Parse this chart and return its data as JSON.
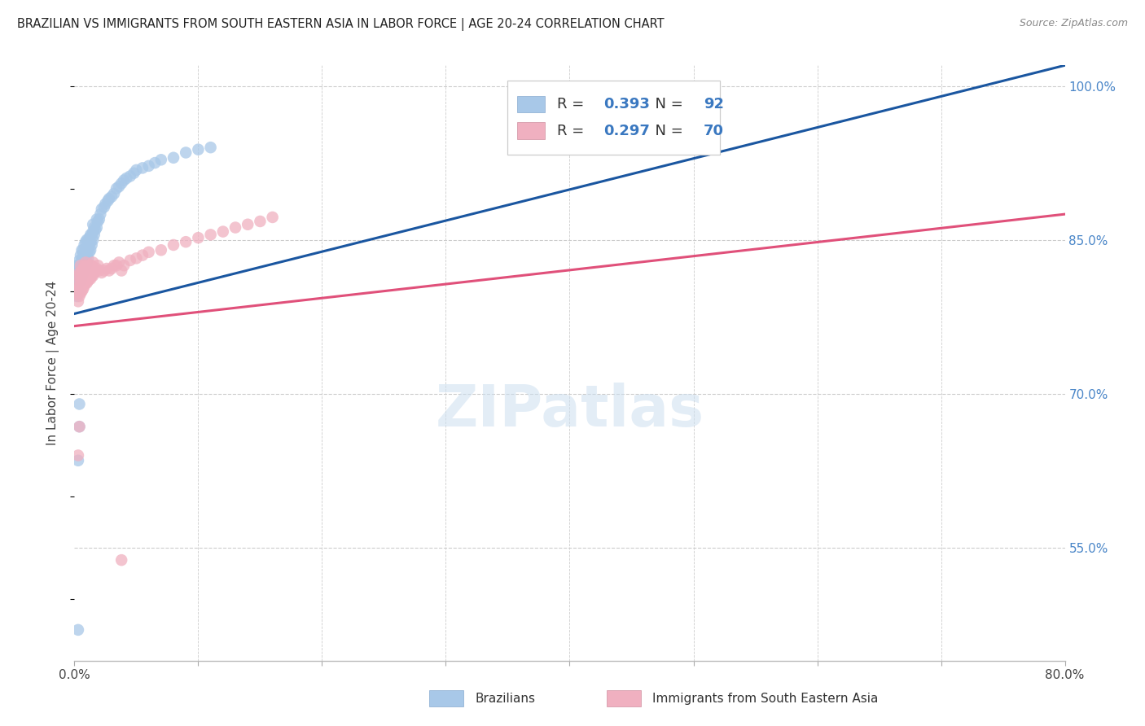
{
  "title": "BRAZILIAN VS IMMIGRANTS FROM SOUTH EASTERN ASIA IN LABOR FORCE | AGE 20-24 CORRELATION CHART",
  "source": "Source: ZipAtlas.com",
  "ylabel": "In Labor Force | Age 20-24",
  "x_min": 0.0,
  "x_max": 0.8,
  "y_min": 0.44,
  "y_max": 1.02,
  "x_ticks": [
    0.0,
    0.1,
    0.2,
    0.3,
    0.4,
    0.5,
    0.6,
    0.7,
    0.8
  ],
  "x_tick_labels": [
    "0.0%",
    "",
    "",
    "",
    "",
    "",
    "",
    "",
    "80.0%"
  ],
  "y_ticks": [
    0.55,
    0.7,
    0.85,
    1.0
  ],
  "y_tick_labels": [
    "55.0%",
    "70.0%",
    "85.0%",
    "100.0%"
  ],
  "blue_color": "#a8c8e8",
  "pink_color": "#f0b0c0",
  "blue_line_color": "#1a56a0",
  "pink_line_color": "#e0507a",
  "legend_label_blue": "Brazilians",
  "legend_label_pink": "Immigrants from South Eastern Asia",
  "R_blue": 0.393,
  "N_blue": 92,
  "R_pink": 0.297,
  "N_pink": 70,
  "blue_trend_x0": 0.0,
  "blue_trend_y0": 0.778,
  "blue_trend_x1": 0.8,
  "blue_trend_y1": 1.02,
  "pink_trend_x0": 0.0,
  "pink_trend_y0": 0.766,
  "pink_trend_x1": 0.8,
  "pink_trend_y1": 0.875,
  "watermark": "ZIPatlas",
  "background_color": "#ffffff",
  "grid_color": "#cccccc",
  "blue_scatter_x": [
    0.001,
    0.001,
    0.001,
    0.002,
    0.002,
    0.002,
    0.002,
    0.003,
    0.003,
    0.003,
    0.003,
    0.003,
    0.004,
    0.004,
    0.004,
    0.004,
    0.005,
    0.005,
    0.005,
    0.005,
    0.005,
    0.006,
    0.006,
    0.006,
    0.006,
    0.006,
    0.007,
    0.007,
    0.007,
    0.007,
    0.007,
    0.008,
    0.008,
    0.008,
    0.008,
    0.009,
    0.009,
    0.009,
    0.009,
    0.01,
    0.01,
    0.01,
    0.01,
    0.011,
    0.011,
    0.011,
    0.012,
    0.012,
    0.012,
    0.013,
    0.013,
    0.013,
    0.014,
    0.014,
    0.015,
    0.015,
    0.015,
    0.016,
    0.016,
    0.017,
    0.018,
    0.018,
    0.019,
    0.02,
    0.021,
    0.022,
    0.024,
    0.025,
    0.027,
    0.028,
    0.03,
    0.032,
    0.034,
    0.036,
    0.038,
    0.04,
    0.042,
    0.045,
    0.048,
    0.05,
    0.055,
    0.06,
    0.065,
    0.07,
    0.08,
    0.09,
    0.1,
    0.11,
    0.003,
    0.004,
    0.003,
    0.004
  ],
  "blue_scatter_y": [
    0.8,
    0.81,
    0.82,
    0.795,
    0.805,
    0.815,
    0.825,
    0.8,
    0.808,
    0.815,
    0.82,
    0.825,
    0.81,
    0.815,
    0.82,
    0.83,
    0.81,
    0.815,
    0.82,
    0.825,
    0.835,
    0.815,
    0.82,
    0.825,
    0.83,
    0.84,
    0.818,
    0.822,
    0.828,
    0.835,
    0.84,
    0.82,
    0.826,
    0.832,
    0.845,
    0.825,
    0.832,
    0.838,
    0.848,
    0.828,
    0.835,
    0.84,
    0.85,
    0.832,
    0.84,
    0.848,
    0.838,
    0.845,
    0.852,
    0.84,
    0.848,
    0.855,
    0.845,
    0.855,
    0.85,
    0.858,
    0.865,
    0.855,
    0.862,
    0.86,
    0.862,
    0.87,
    0.868,
    0.87,
    0.875,
    0.88,
    0.882,
    0.885,
    0.888,
    0.89,
    0.892,
    0.895,
    0.9,
    0.902,
    0.905,
    0.908,
    0.91,
    0.912,
    0.915,
    0.918,
    0.92,
    0.922,
    0.925,
    0.928,
    0.93,
    0.935,
    0.938,
    0.94,
    0.635,
    0.668,
    0.47,
    0.69
  ],
  "pink_scatter_x": [
    0.001,
    0.002,
    0.002,
    0.003,
    0.003,
    0.003,
    0.004,
    0.004,
    0.004,
    0.005,
    0.005,
    0.005,
    0.005,
    0.006,
    0.006,
    0.006,
    0.007,
    0.007,
    0.007,
    0.008,
    0.008,
    0.008,
    0.009,
    0.009,
    0.009,
    0.01,
    0.01,
    0.01,
    0.011,
    0.011,
    0.012,
    0.012,
    0.013,
    0.013,
    0.014,
    0.014,
    0.015,
    0.015,
    0.016,
    0.017,
    0.018,
    0.019,
    0.02,
    0.022,
    0.024,
    0.026,
    0.028,
    0.03,
    0.032,
    0.034,
    0.036,
    0.038,
    0.04,
    0.045,
    0.05,
    0.055,
    0.06,
    0.07,
    0.08,
    0.09,
    0.1,
    0.11,
    0.12,
    0.13,
    0.14,
    0.15,
    0.16,
    0.003,
    0.004,
    0.038
  ],
  "pink_scatter_y": [
    0.8,
    0.798,
    0.808,
    0.79,
    0.8,
    0.815,
    0.795,
    0.805,
    0.818,
    0.798,
    0.808,
    0.815,
    0.825,
    0.8,
    0.81,
    0.82,
    0.802,
    0.812,
    0.822,
    0.805,
    0.815,
    0.825,
    0.808,
    0.818,
    0.828,
    0.808,
    0.818,
    0.825,
    0.81,
    0.82,
    0.812,
    0.822,
    0.812,
    0.825,
    0.815,
    0.825,
    0.815,
    0.828,
    0.818,
    0.82,
    0.822,
    0.825,
    0.82,
    0.818,
    0.82,
    0.822,
    0.82,
    0.822,
    0.825,
    0.825,
    0.828,
    0.82,
    0.825,
    0.83,
    0.832,
    0.835,
    0.838,
    0.84,
    0.845,
    0.848,
    0.852,
    0.855,
    0.858,
    0.862,
    0.865,
    0.868,
    0.872,
    0.64,
    0.668,
    0.538
  ]
}
